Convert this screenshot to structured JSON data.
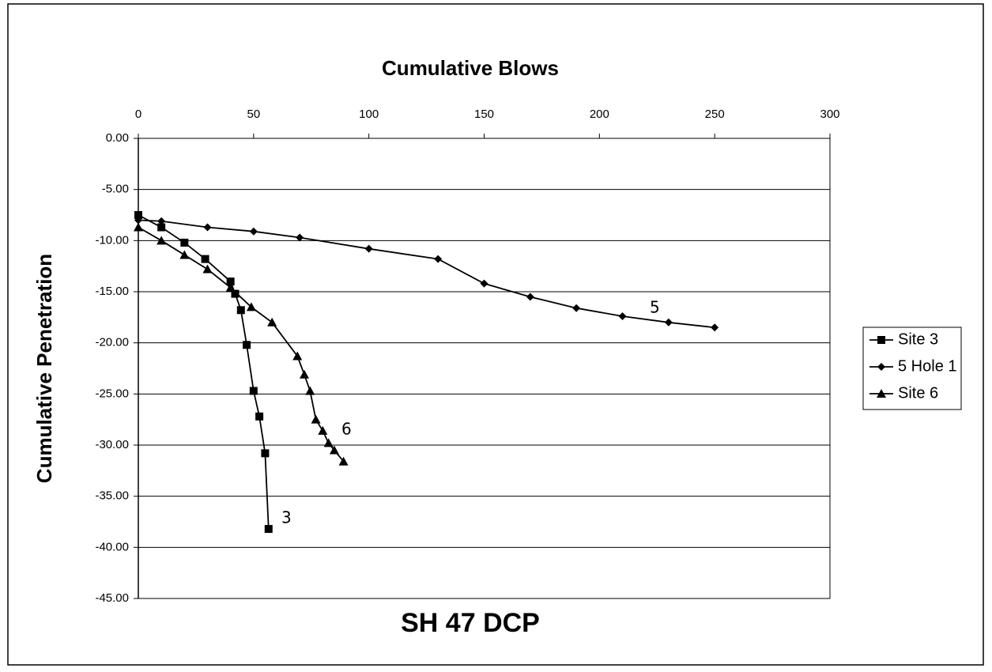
{
  "chart_data": {
    "type": "line",
    "title": "SH 47 DCP",
    "x_label": "Cumulative Blows",
    "y_label": "Cumulative Penetration",
    "xlim": [
      0,
      300
    ],
    "xticks": [
      0,
      50,
      100,
      150,
      200,
      250,
      300
    ],
    "ylim": [
      -45,
      0
    ],
    "yticks": [
      {
        "value": 0,
        "label": "0.00"
      },
      {
        "value": -5,
        "label": "-5.00"
      },
      {
        "value": -10,
        "label": "-10.00"
      },
      {
        "value": -15,
        "label": "-15.00"
      },
      {
        "value": -20,
        "label": "-20.00"
      },
      {
        "value": -25,
        "label": "-25.00"
      },
      {
        "value": -30,
        "label": "-30.00"
      },
      {
        "value": -35,
        "label": "-35.00"
      },
      {
        "value": -40,
        "label": "-40.00"
      },
      {
        "value": -45,
        "label": "-45.00"
      }
    ],
    "grid": true,
    "legend": "right",
    "series": [
      {
        "name": "Site 3",
        "color": "#000000",
        "marker": "square",
        "x": [
          0,
          10,
          20,
          29,
          40,
          42,
          44.5,
          47,
          50,
          52.5,
          55,
          56.5
        ],
        "values": [
          -7.5,
          -8.7,
          -10.2,
          -11.8,
          -14.0,
          -15.2,
          -16.8,
          -20.2,
          -24.7,
          -27.2,
          -30.8,
          -38.2
        ]
      },
      {
        "name": "5 Hole 1",
        "color": "#000000",
        "marker": "diamond",
        "x": [
          0,
          10,
          30,
          50,
          70,
          100,
          130,
          150,
          170,
          190,
          210,
          230,
          250
        ],
        "values": [
          -8.0,
          -8.1,
          -8.7,
          -9.1,
          -9.7,
          -10.8,
          -11.8,
          -14.2,
          -15.5,
          -16.6,
          -17.4,
          -18.0,
          -18.5
        ]
      },
      {
        "name": "Site 6",
        "color": "#000000",
        "marker": "triangle",
        "x": [
          0,
          10,
          20,
          30,
          40,
          49,
          58,
          69,
          72,
          74.5,
          77,
          80,
          82.5,
          85,
          89
        ],
        "values": [
          -8.7,
          -10.0,
          -11.4,
          -12.8,
          -14.6,
          -16.5,
          -18.0,
          -21.3,
          -23.1,
          -24.7,
          -27.5,
          -28.6,
          -29.8,
          -30.5,
          -31.6
        ]
      }
    ],
    "annotations": [
      "5",
      "6",
      "3"
    ]
  }
}
